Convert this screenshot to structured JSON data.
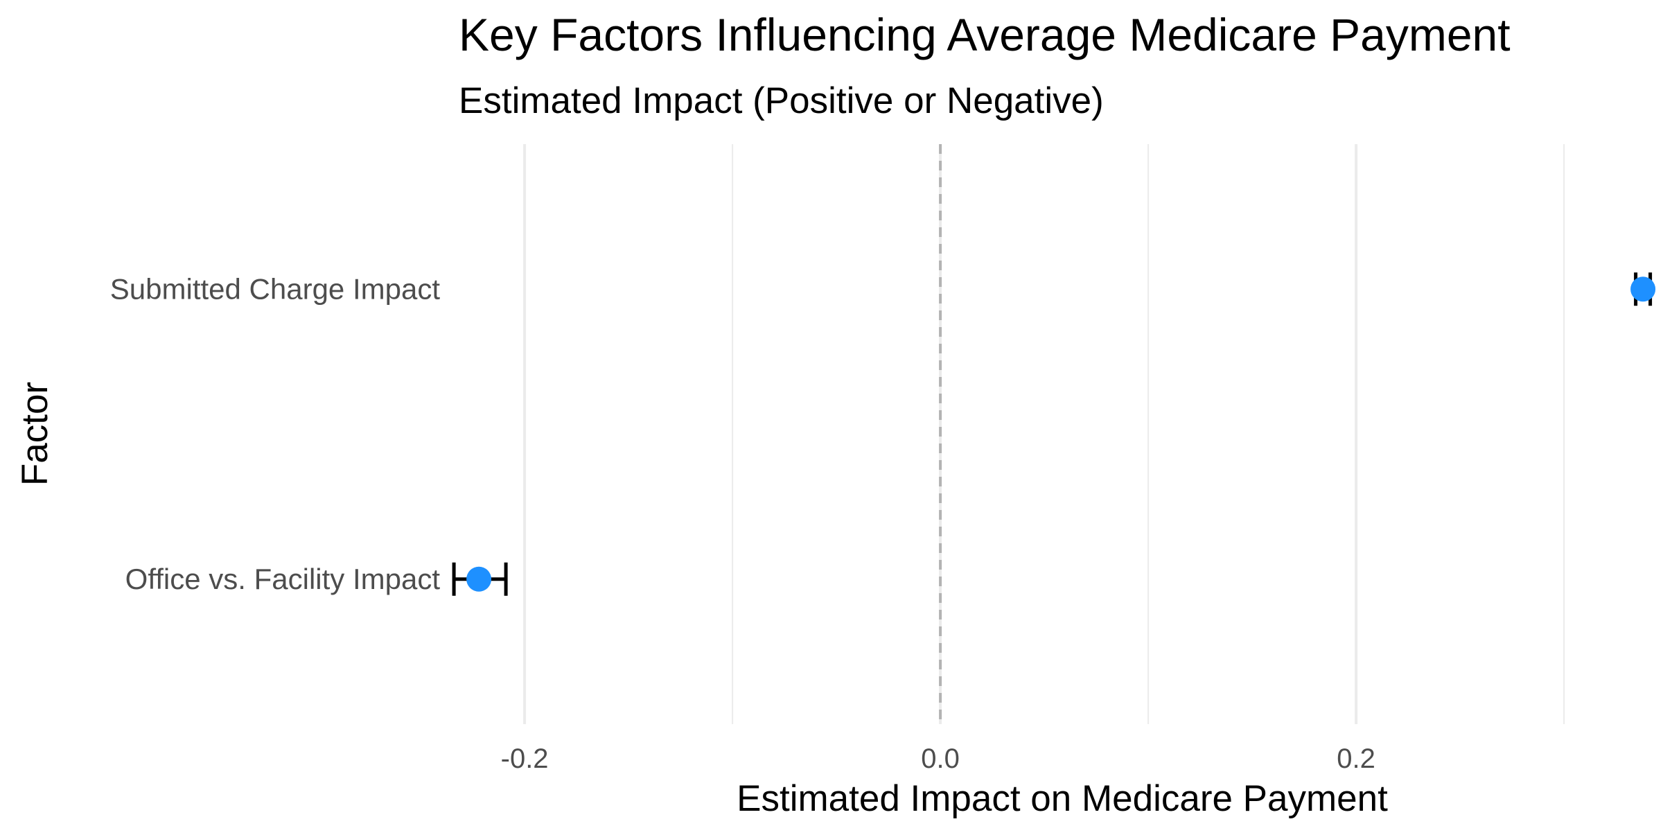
{
  "chart_data": {
    "type": "scatter",
    "title": "Key Factors Influencing Average Medicare Payment",
    "subtitle": "Estimated Impact (Positive or Negative)",
    "xlabel": "Estimated Impact on Medicare Payment",
    "ylabel": "Factor",
    "xlim": [
      -0.2317,
      0.3443
    ],
    "x_ticks": [
      -0.2,
      0.0,
      0.2
    ],
    "x_tick_labels": [
      "-0.2",
      "0.0",
      "0.2"
    ],
    "reference_line": {
      "x": 0.0,
      "style": "dashed"
    },
    "grid": true,
    "categories": [
      "Submitted Charge Impact",
      "Office vs. Facility Impact"
    ],
    "points": [
      {
        "category": "Submitted Charge Impact",
        "estimate": 0.338,
        "lower": 0.3345,
        "upper": 0.3415
      },
      {
        "category": "Office vs. Facility Impact",
        "estimate": -0.222,
        "lower": -0.234,
        "upper": -0.209
      }
    ],
    "colors": {
      "point": "#1E90FF",
      "error_bar": "#000000",
      "grid": "#EBEBEB",
      "reference_line": "#B3B3B3"
    }
  }
}
